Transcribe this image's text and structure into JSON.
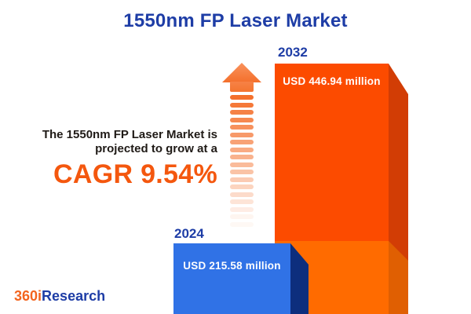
{
  "title": "1550nm FP Laser Market",
  "description": {
    "line1": "The 1550nm FP Laser Market is",
    "line2": "projected to grow at a",
    "cagr": "CAGR 9.54%"
  },
  "bars": {
    "b2024": {
      "year": "2024",
      "value_label": "USD 215.58 million"
    },
    "b2032": {
      "year": "2032",
      "value_label": "USD 446.94 million"
    }
  },
  "logo": {
    "prefix": "360i",
    "suffix": "Research"
  },
  "icons": {
    "growth_arrow": "up-arrow-dashed-fade"
  },
  "colors": {
    "title_blue": "#1E3DA6",
    "bar_2024_face": "#3072E6",
    "bar_2024_side": "#0D2E7D",
    "bar_2032_face_upper": "#FC4B00",
    "bar_2032_face_lower": "#FF6B00",
    "bar_2032_side_upper": "#D23D05",
    "bar_2032_side_lower": "#E05F02",
    "cagr_orange": "#F4570E",
    "arrow_orange": "#F4702C",
    "logo_orange": "#F3641E",
    "text_dark": "#1F1A16",
    "value_text": "#FFFFFF",
    "background": "#FFFFFF"
  },
  "chart_data": {
    "type": "bar",
    "title": "1550nm FP Laser Market",
    "categories": [
      "2024",
      "2032"
    ],
    "values": [
      215.58,
      446.94
    ],
    "unit": "USD million",
    "data_labels": [
      "USD 215.58 million",
      "USD 446.94 million"
    ],
    "series": [
      {
        "name": "1550nm FP Laser Market size",
        "values": [
          215.58,
          446.94
        ]
      }
    ],
    "annotations": [
      "The 1550nm FP Laser Market is projected to grow at a CAGR 9.54%"
    ],
    "cagr_percent": 9.54,
    "xlabel": "",
    "ylabel": "",
    "legend": "none",
    "grid": false,
    "style": "3d-infographic-bars"
  }
}
